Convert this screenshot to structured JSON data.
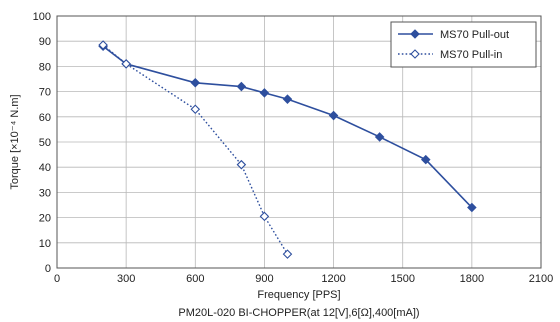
{
  "chart_data": {
    "type": "line",
    "xlabel": "Frequency [PPS]",
    "ylabel": "Torque [×10⁻⁴ N.m]",
    "caption": "PM20L-020 BI-CHOPPER(at 12[V],6[Ω],400[mA])",
    "xlim": [
      0,
      2100
    ],
    "ylim": [
      0,
      100
    ],
    "x_ticks": [
      "0",
      "300",
      "600",
      "900",
      "1200",
      "1500",
      "1800",
      "2100"
    ],
    "y_ticks": [
      "0",
      "10",
      "20",
      "30",
      "40",
      "50",
      "60",
      "70",
      "80",
      "90",
      "100"
    ],
    "grid": true,
    "legend_position": "top-right",
    "series": [
      {
        "name": "MS70  Pull-out",
        "line_style": "solid",
        "marker": "filled-diamond",
        "color": "#2e4f9e",
        "points": [
          [
            200,
            88
          ],
          [
            300,
            81
          ],
          [
            600,
            73.5
          ],
          [
            800,
            72
          ],
          [
            900,
            69.5
          ],
          [
            1000,
            67
          ],
          [
            1200,
            60.5
          ],
          [
            1400,
            52
          ],
          [
            1600,
            43
          ],
          [
            1800,
            24
          ]
        ]
      },
      {
        "name": "MS70  Pull-in",
        "line_style": "dotted",
        "marker": "open-diamond",
        "color": "#2e4f9e",
        "points": [
          [
            200,
            88.5
          ],
          [
            300,
            81
          ],
          [
            600,
            63
          ],
          [
            800,
            41
          ],
          [
            900,
            20.5
          ],
          [
            1000,
            5.5
          ]
        ]
      }
    ]
  }
}
